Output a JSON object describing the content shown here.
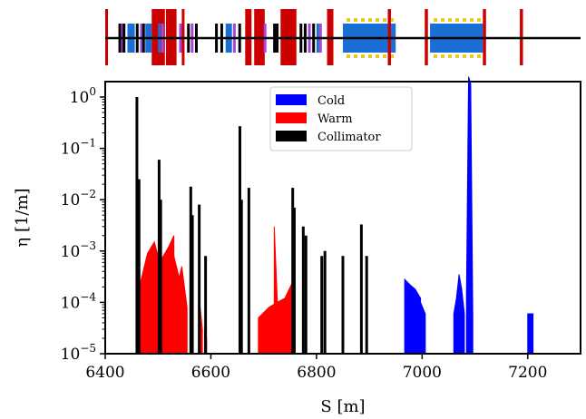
{
  "chart_data": {
    "type": "area",
    "xlabel": "S [m]",
    "ylabel": "η [1/m]",
    "xlim": [
      6400,
      7300
    ],
    "ylim_log10": [
      -5,
      0.3
    ],
    "yscale": "log",
    "x_ticks": [
      "6400",
      "6600",
      "6800",
      "7000",
      "7200"
    ],
    "x_tick_values": [
      6400,
      6600,
      6800,
      7000,
      7200
    ],
    "y_ticks": [
      {
        "base": "10",
        "exp": "0",
        "value": 1
      },
      {
        "base": "10",
        "exp": "−1",
        "value": 0.1
      },
      {
        "base": "10",
        "exp": "−2",
        "value": 0.01
      },
      {
        "base": "10",
        "exp": "−3",
        "value": 0.001
      },
      {
        "base": "10",
        "exp": "−4",
        "value": 0.0001
      },
      {
        "base": "10",
        "exp": "−5",
        "value": 1e-05
      }
    ],
    "legend": {
      "placement": "top-center",
      "entries": [
        {
          "label": "Cold",
          "color": "#0000ff"
        },
        {
          "label": "Warm",
          "color": "#ff0000"
        },
        {
          "label": "Collimator",
          "color": "#000000"
        }
      ]
    },
    "series": [
      {
        "name": "Cold",
        "color": "#0000ff",
        "blocks": [
          {
            "x": [
              6967,
              6977,
              6987,
              6997
            ],
            "y": [
              0.00028,
              0.00022,
              0.00018,
              0.00012
            ]
          },
          {
            "x": [
              6997,
              7006
            ],
            "y": [
              0.0001,
              6e-05
            ]
          },
          {
            "x": [
              7060,
              7065,
              7070,
              7075,
              7080
            ],
            "y": [
              6e-05,
              0.00012,
              0.00035,
              0.00018,
              6e-05
            ]
          },
          {
            "x": [
              7084,
              7088,
              7092,
              7096
            ],
            "y": [
              0.00015,
              2.5,
              1.8,
              5e-05
            ]
          },
          {
            "x": [
              7200,
              7210
            ],
            "y": [
              6e-05,
              6e-05
            ]
          }
        ]
      },
      {
        "name": "Warm",
        "color": "#ff0000",
        "blocks": [
          {
            "x": [
              6467,
              6480,
              6493,
              6500
            ],
            "y": [
              0.00025,
              0.0009,
              0.0015,
              0.0008
            ]
          },
          {
            "x": [
              6503,
              6520,
              6530
            ],
            "y": [
              0.0006,
              0.0012,
              0.002
            ]
          },
          {
            "x": [
              6530,
              6540,
              6545,
              6555
            ],
            "y": [
              0.0008,
              0.0003,
              0.0005,
              8e-05
            ]
          },
          {
            "x": [
              6578,
              6584
            ],
            "y": [
              0.00012,
              3e-05
            ]
          },
          {
            "x": [
              6588,
              6592
            ],
            "y": [
              3e-05,
              2e-05
            ]
          },
          {
            "x": [
              6690,
              6710,
              6725,
              6740,
              6755
            ],
            "y": [
              5e-05,
              8e-05,
              0.0001,
              0.00012,
              0.00025
            ]
          },
          {
            "x": [
              6720,
              6726
            ],
            "y": [
              0.003,
              0.0001
            ]
          }
        ]
      },
      {
        "name": "Collimator",
        "color": "#000000",
        "spikes": [
          {
            "x": 6460,
            "y": 1.0
          },
          {
            "x": 6464,
            "y": 0.025
          },
          {
            "x": 6502,
            "y": 0.06
          },
          {
            "x": 6505,
            "y": 0.01
          },
          {
            "x": 6562,
            "y": 0.018
          },
          {
            "x": 6565,
            "y": 0.005
          },
          {
            "x": 6578,
            "y": 0.008
          },
          {
            "x": 6590,
            "y": 0.0008
          },
          {
            "x": 6655,
            "y": 0.27
          },
          {
            "x": 6658,
            "y": 0.01
          },
          {
            "x": 6672,
            "y": 0.017
          },
          {
            "x": 6755,
            "y": 0.017
          },
          {
            "x": 6758,
            "y": 0.007
          },
          {
            "x": 6775,
            "y": 0.003
          },
          {
            "x": 6780,
            "y": 0.002
          },
          {
            "x": 6810,
            "y": 0.0008
          },
          {
            "x": 6816,
            "y": 0.001
          },
          {
            "x": 6850,
            "y": 0.0008
          },
          {
            "x": 6885,
            "y": 0.0033
          },
          {
            "x": 6895,
            "y": 0.0008
          }
        ]
      }
    ],
    "beamline_elements": [
      {
        "type": "warm-magnet",
        "x": 6400,
        "w": 5
      },
      {
        "type": "collimator",
        "x": 6425,
        "w": 4
      },
      {
        "type": "marker",
        "x": 6430,
        "w": 3
      },
      {
        "type": "collimator",
        "x": 6433,
        "w": 3
      },
      {
        "type": "cold-dipole",
        "x": 6442,
        "w": 14
      },
      {
        "type": "collimator",
        "x": 6458,
        "w": 4
      },
      {
        "type": "marker",
        "x": 6466,
        "w": 3
      },
      {
        "type": "collimator",
        "x": 6470,
        "w": 3
      },
      {
        "type": "cold-dipole",
        "x": 6476,
        "w": 12
      },
      {
        "type": "warm-magnet",
        "x": 6488,
        "w": 25
      },
      {
        "type": "cold-dipole",
        "x": 6500,
        "w": 5
      },
      {
        "type": "marker",
        "x": 6506,
        "w": 3
      },
      {
        "type": "warm-magnet",
        "x": 6515,
        "w": 20
      },
      {
        "type": "marker",
        "x": 6540,
        "w": 3
      },
      {
        "type": "warm-magnet",
        "x": 6545,
        "w": 5
      },
      {
        "type": "collimator",
        "x": 6555,
        "w": 4
      },
      {
        "type": "marker",
        "x": 6562,
        "w": 3
      },
      {
        "type": "collimator",
        "x": 6570,
        "w": 3
      },
      {
        "type": "collimator",
        "x": 6608,
        "w": 3
      },
      {
        "type": "collimator",
        "x": 6618,
        "w": 4
      },
      {
        "type": "cold-dipole",
        "x": 6628,
        "w": 12
      },
      {
        "type": "marker",
        "x": 6642,
        "w": 3
      },
      {
        "type": "collimator",
        "x": 6652,
        "w": 4
      },
      {
        "type": "warm-magnet",
        "x": 6665,
        "w": 12
      },
      {
        "type": "warm-magnet",
        "x": 6682,
        "w": 20
      },
      {
        "type": "marker",
        "x": 6700,
        "w": 3
      },
      {
        "type": "collimator",
        "x": 6718,
        "w": 3
      },
      {
        "type": "collimator",
        "x": 6723,
        "w": 3
      },
      {
        "type": "warm-magnet",
        "x": 6732,
        "w": 30
      },
      {
        "type": "collimator",
        "x": 6768,
        "w": 4
      },
      {
        "type": "collimator",
        "x": 6776,
        "w": 4
      },
      {
        "type": "marker",
        "x": 6784,
        "w": 3
      },
      {
        "type": "collimator",
        "x": 6792,
        "w": 3
      },
      {
        "type": "cold-dipole",
        "x": 6800,
        "w": 5
      },
      {
        "type": "marker",
        "x": 6805,
        "w": 3
      },
      {
        "type": "warm-magnet",
        "x": 6820,
        "w": 12
      },
      {
        "type": "cold-dipole",
        "x": 6850,
        "w": 100
      },
      {
        "type": "warm-magnet",
        "x": 6935,
        "w": 6
      },
      {
        "type": "warm-magnet",
        "x": 7005,
        "w": 6
      },
      {
        "type": "cold-dipole",
        "x": 7015,
        "w": 100
      },
      {
        "type": "warm-magnet",
        "x": 7115,
        "w": 6
      },
      {
        "type": "warm-magnet",
        "x": 7185,
        "w": 6
      }
    ]
  }
}
